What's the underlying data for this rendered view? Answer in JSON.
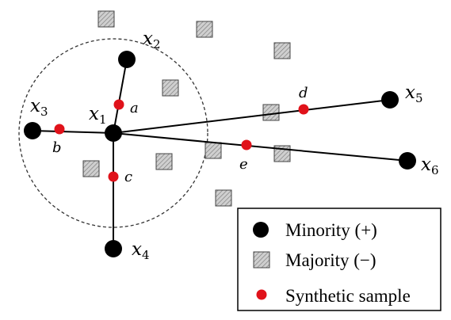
{
  "colors": {
    "minority": "#000000",
    "synthetic": "#e0121a",
    "majority_fill": "#cccccc",
    "majority_stroke": "#333333",
    "neighborhood": "#333333"
  },
  "minority_points": [
    {
      "id": "x1",
      "base": "x",
      "sub": "1"
    },
    {
      "id": "x2",
      "base": "x",
      "sub": "2"
    },
    {
      "id": "x3",
      "base": "x",
      "sub": "3"
    },
    {
      "id": "x4",
      "base": "x",
      "sub": "4"
    },
    {
      "id": "x5",
      "base": "x",
      "sub": "5"
    },
    {
      "id": "x6",
      "base": "x",
      "sub": "6"
    }
  ],
  "synthetic_samples": [
    {
      "label": "a",
      "between": [
        "x1",
        "x2"
      ]
    },
    {
      "label": "b",
      "between": [
        "x1",
        "x3"
      ]
    },
    {
      "label": "c",
      "between": [
        "x1",
        "x4"
      ]
    },
    {
      "label": "d",
      "between": [
        "x1",
        "x5"
      ]
    },
    {
      "label": "e",
      "between": [
        "x1",
        "x6"
      ]
    }
  ],
  "legend": {
    "minority": "Minority (+)",
    "majority": "Majority (−)",
    "synthetic": "Synthetic sample"
  }
}
